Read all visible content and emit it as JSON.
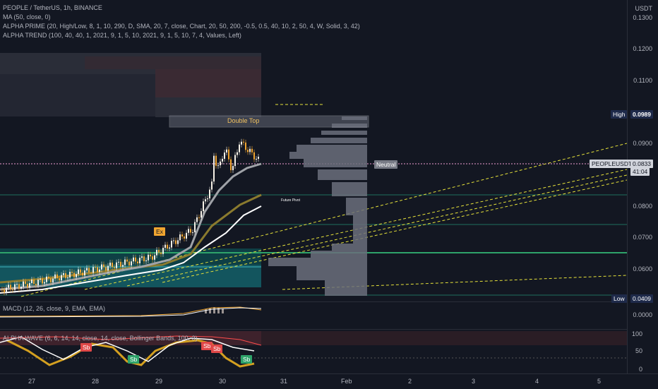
{
  "header": {
    "symbol_line": "PEOPLE / TetherUS, 1h, BINANCE",
    "ma_line": "MA (50, close, 0)",
    "alpha_prime": "ALPHA PRIME (20, High/Low, 8, 1, 10, 290, D, SMA, 20, 7, close, Chart, 20, 50, 200, -0.5, 0.5, 40, 10, 2, 50, 4, W, Solid, 3, 42)",
    "alpha_trend": "ALPHA TREND (100, 40, 40, 1, 2021, 9, 1, 5, 10, 2021, 9, 1, 5, 10, 7, 4, Values, Left)"
  },
  "price_axis": {
    "currency": "USDT",
    "ticks": [
      "0.1300",
      "0.1200",
      "0.1100",
      "0.0900",
      "0.0800",
      "0.0700",
      "0.0600",
      "0.0500",
      "0.0000"
    ],
    "high_label": "High",
    "high_value": "0.0989",
    "symbol_tag": "PEOPLEUSDT",
    "last_price": "0.0833",
    "countdown": "41:04",
    "low_label": "Low",
    "low_value": "0.0409"
  },
  "annotations": {
    "double_top": "Double Top",
    "neutral": "Neutral",
    "future_pivot": "Future Pivot",
    "ex": "Ex"
  },
  "macd": {
    "legend": "MACD (12, 26, close, 9, EMA, EMA)",
    "tick": "0.0000"
  },
  "alpha_wave": {
    "legend": "ALPHA WAVE (6, 6, 14, 14, close, 14, close, Bollinger Bands, 100, 3)",
    "ticks": [
      "100",
      "50",
      "0"
    ],
    "badges": [
      "Sb",
      "Sb",
      "Sb",
      "Sb",
      "Sb"
    ]
  },
  "time_axis": {
    "labels": [
      "27",
      "28",
      "29",
      "30",
      "31",
      "Feb",
      "2",
      "3",
      "4",
      "5"
    ]
  },
  "colors": {
    "background": "#131722",
    "up_candle": "#f5f0e6",
    "down_candle": "#f0a530",
    "trendline": "#e6e23a",
    "teal_zone": "#0f4a4f",
    "price_line": "#ef9dd2"
  }
}
